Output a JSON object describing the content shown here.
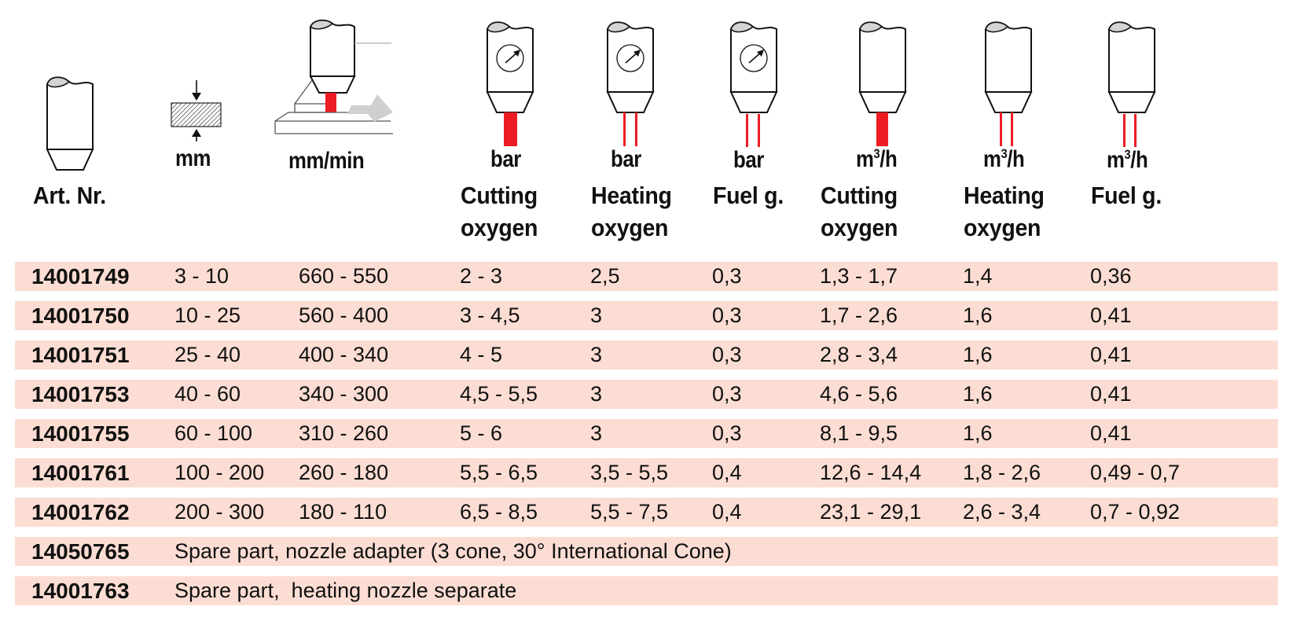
{
  "columns": {
    "art_nr": {
      "label": "Art. Nr.",
      "icon": "nozzle-icon"
    },
    "thickness": {
      "unit": "mm",
      "icon": "material-thickness-icon"
    },
    "speed": {
      "unit": "mm/min",
      "icon": "cutting-speed-icon"
    },
    "cutting_oxygen_pressure": {
      "unit": "bar",
      "label_line1": "Cutting",
      "label_line2": "oxygen",
      "icon": "nozzle-gauge-cutting-jet-icon"
    },
    "heating_oxygen_pressure": {
      "unit": "bar",
      "label_line1": "Heating",
      "label_line2": "oxygen",
      "icon": "nozzle-gauge-heating-jet-icon"
    },
    "fuel_gas_pressure": {
      "unit": "bar",
      "label_line1": "Fuel g.",
      "label_line2": "",
      "icon": "nozzle-gauge-fuel-jet-icon"
    },
    "cutting_oxygen_flow": {
      "unit_base": "m",
      "unit_sup": "3",
      "unit_tail": "/h",
      "label_line1": "Cutting",
      "label_line2": "oxygen",
      "icon": "nozzle-cutting-jet-icon"
    },
    "heating_oxygen_flow": {
      "unit_base": "m",
      "unit_sup": "3",
      "unit_tail": "/h",
      "label_line1": "Heating",
      "label_line2": "oxygen",
      "icon": "nozzle-heating-jet-icon"
    },
    "fuel_gas_flow": {
      "unit_base": "m",
      "unit_sup": "3",
      "unit_tail": "/h",
      "label_line1": "Fuel g.",
      "label_line2": "",
      "icon": "nozzle-fuel-jet-icon"
    }
  },
  "rows": [
    {
      "art": "14001749",
      "mm": "3 - 10",
      "speed": "660 - 550",
      "co_bar": "2 - 3",
      "ho_bar": "2,5",
      "fg_bar": "0,3",
      "co_flow": "1,3 - 1,7",
      "ho_flow": "1,4",
      "fg_flow": "0,36"
    },
    {
      "art": "14001750",
      "mm": "10 - 25",
      "speed": "560 - 400",
      "co_bar": "3 - 4,5",
      "ho_bar": "3",
      "fg_bar": "0,3",
      "co_flow": "1,7 - 2,6",
      "ho_flow": "1,6",
      "fg_flow": "0,41"
    },
    {
      "art": "14001751",
      "mm": "25 - 40",
      "speed": "400 - 340",
      "co_bar": "4 - 5",
      "ho_bar": "3",
      "fg_bar": "0,3",
      "co_flow": "2,8 - 3,4",
      "ho_flow": "1,6",
      "fg_flow": "0,41"
    },
    {
      "art": "14001753",
      "mm": "40 - 60",
      "speed": "340 - 300",
      "co_bar": "4,5 - 5,5",
      "ho_bar": "3",
      "fg_bar": "0,3",
      "co_flow": "4,6 - 5,6",
      "ho_flow": "1,6",
      "fg_flow": "0,41"
    },
    {
      "art": "14001755",
      "mm": "60 - 100",
      "speed": "310 - 260",
      "co_bar": "5 - 6",
      "ho_bar": "3",
      "fg_bar": "0,3",
      "co_flow": "8,1 - 9,5",
      "ho_flow": "1,6",
      "fg_flow": "0,41"
    },
    {
      "art": "14001761",
      "mm": "100 - 200",
      "speed": "260 - 180",
      "co_bar": "5,5 - 6,5",
      "ho_bar": "3,5 - 5,5",
      "fg_bar": "0,4",
      "co_flow": "12,6 - 14,4",
      "ho_flow": "1,8 - 2,6",
      "fg_flow": "0,49 - 0,7"
    },
    {
      "art": "14001762",
      "mm": "200 - 300",
      "speed": "180 - 110",
      "co_bar": "6,5 - 8,5",
      "ho_bar": "5,5 - 7,5",
      "fg_bar": "0,4",
      "co_flow": "23,1 - 29,1",
      "ho_flow": "2,6 - 3,4",
      "fg_flow": "0,7 - 0,92"
    }
  ],
  "spare_parts": [
    {
      "art": "14050765",
      "description": "Spare part, nozzle adapter (3 cone, 30° International Cone)"
    },
    {
      "art": "14001763",
      "description": "Spare part,  heating nozzle separate"
    }
  ],
  "colors": {
    "row_background": "#fcddd3",
    "jet_red": "#ed1c24",
    "nozzle_cap_grey": "#d4d4d4",
    "arrow_grey": "#cfcfcf"
  }
}
